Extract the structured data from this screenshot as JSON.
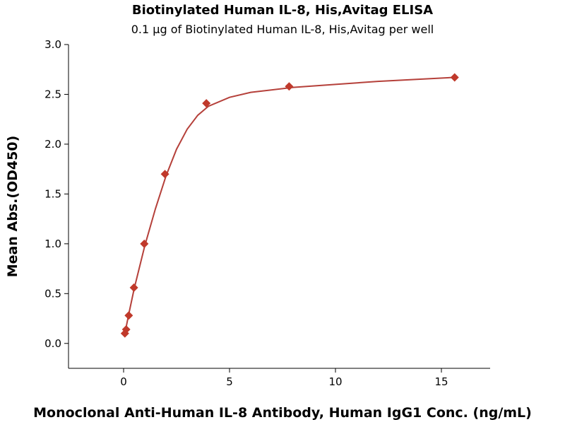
{
  "chart_data": {
    "type": "scatter",
    "title": "Biotinylated Human IL-8, His,Avitag ELISA",
    "subtitle": "0.1 μg of Biotinylated Human IL-8, His,Avitag per well",
    "x_label": "Monoclonal Anti-Human IL-8 Antibody, Human IgG1 Conc. (ng/mL)",
    "y_label": "Mean Abs.(OD450)",
    "xlim": [
      -2.6,
      17.3
    ],
    "ylim": [
      -0.25,
      3.0
    ],
    "xticks": [
      0,
      5,
      10,
      15
    ],
    "yticks": [
      {
        "value": 0,
        "label": "0.0"
      },
      0.5,
      {
        "value": 1,
        "label": "1.0"
      },
      1.5,
      {
        "value": 2,
        "label": "2.0"
      },
      2.5,
      {
        "value": 3,
        "label": "3.0"
      }
    ],
    "color": "#c0392b",
    "series": [
      {
        "type": "scatter",
        "color": "#c0392b",
        "x": [
          0.061,
          0.122,
          0.244,
          0.488,
          0.977,
          1.953,
          3.906,
          7.8125,
          15.625
        ],
        "values": [
          0.1,
          0.14,
          0.28,
          0.56,
          1.0,
          1.7,
          2.41,
          2.58,
          2.67
        ]
      },
      {
        "type": "line",
        "color": "#b5403a",
        "x": [
          0.06,
          0.25,
          0.5,
          1,
          1.5,
          2,
          2.5,
          3,
          3.5,
          4,
          5,
          6,
          8,
          10,
          12,
          15.6
        ],
        "values": [
          0.1,
          0.3,
          0.55,
          0.98,
          1.35,
          1.68,
          1.95,
          2.15,
          2.29,
          2.38,
          2.47,
          2.52,
          2.57,
          2.6,
          2.63,
          2.67
        ]
      }
    ]
  }
}
